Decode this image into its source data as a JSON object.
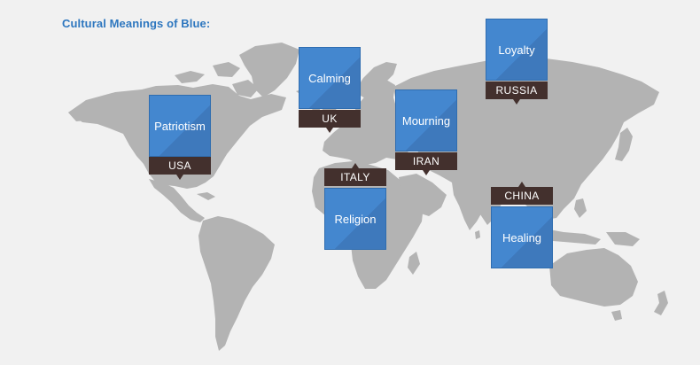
{
  "title": "Cultural Meanings of Blue:",
  "colors": {
    "accent": "#2e77bf",
    "card": "#4487cf",
    "tag": "#43302d",
    "land": "#b3b3b3",
    "background": "#f1f1f1"
  },
  "callouts": [
    {
      "country": "USA",
      "meaning": "Patriotism"
    },
    {
      "country": "UK",
      "meaning": "Calming"
    },
    {
      "country": "ITALY",
      "meaning": "Religion"
    },
    {
      "country": "IRAN",
      "meaning": "Mourning"
    },
    {
      "country": "RUSSIA",
      "meaning": "Loyalty"
    },
    {
      "country": "CHINA",
      "meaning": "Healing"
    }
  ]
}
